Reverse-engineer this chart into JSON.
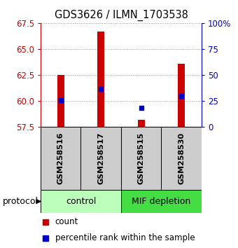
{
  "title": "GDS3626 / ILMN_1703538",
  "samples": [
    "GSM258516",
    "GSM258517",
    "GSM258515",
    "GSM258530"
  ],
  "groups": [
    "control",
    "control",
    "MIF depletion",
    "MIF depletion"
  ],
  "bar_bottoms": [
    57.5,
    57.5,
    57.5,
    57.5
  ],
  "bar_tops": [
    62.5,
    66.7,
    58.2,
    63.6
  ],
  "percentile_values": [
    60.1,
    61.15,
    59.3,
    60.5
  ],
  "ylim_left": [
    57.5,
    67.5
  ],
  "yticks_left": [
    57.5,
    60.0,
    62.5,
    65.0,
    67.5
  ],
  "ylim_right": [
    0,
    100
  ],
  "yticks_right": [
    0,
    25,
    50,
    75,
    100
  ],
  "ytick_right_labels": [
    "0",
    "25",
    "50",
    "75",
    "100%"
  ],
  "bar_color": "#cc0000",
  "dot_color": "#0000cc",
  "bar_width": 0.18,
  "control_color": "#bbffbb",
  "mif_color": "#44dd44",
  "sample_box_color": "#cccccc",
  "left_tick_color": "#cc0000",
  "right_tick_color": "#0000cc"
}
